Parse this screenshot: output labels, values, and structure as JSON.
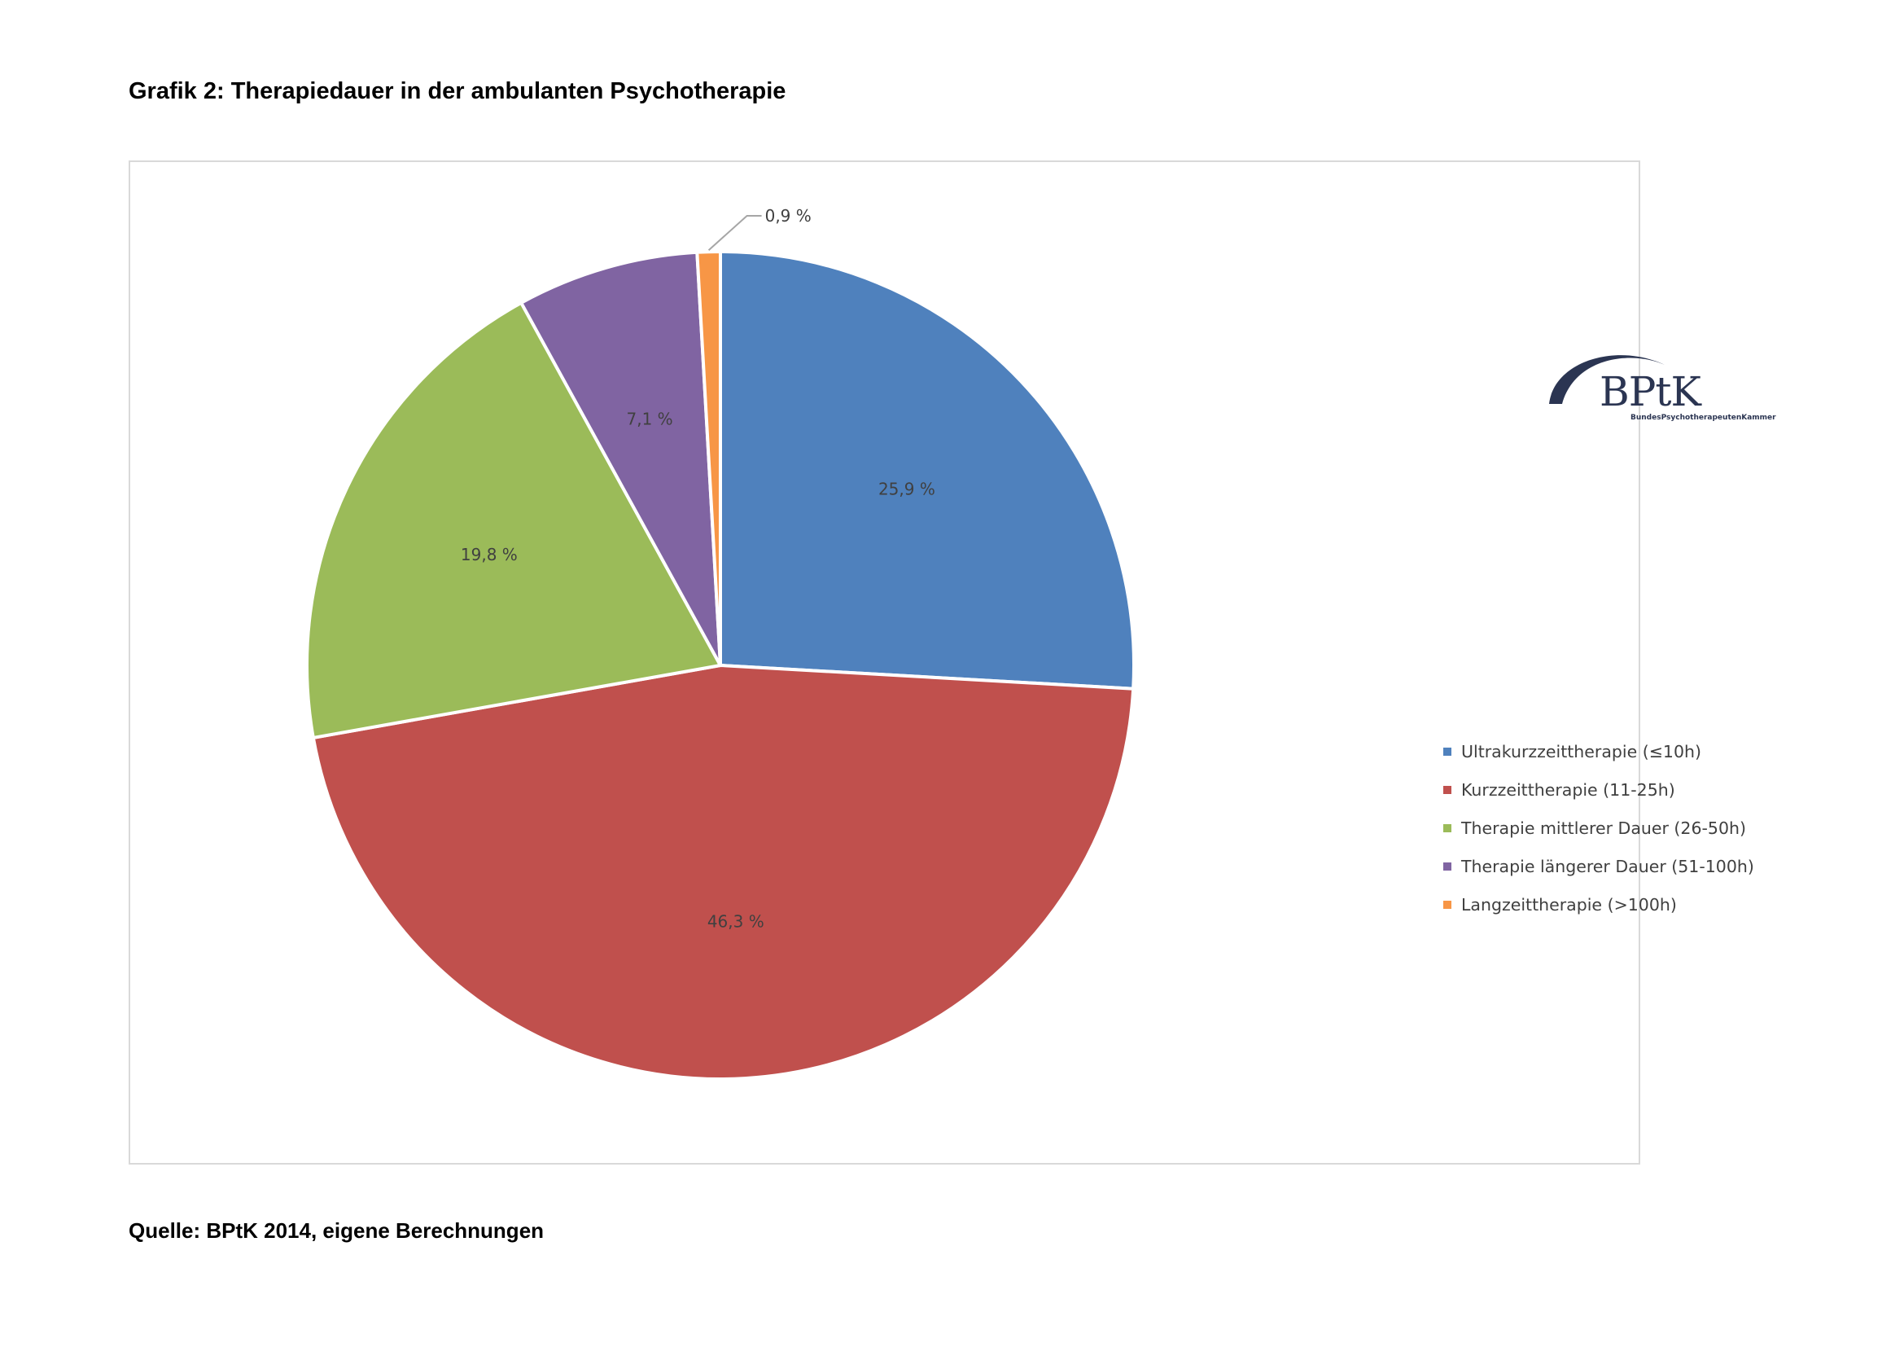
{
  "page": {
    "title": "Grafik 2: Therapiedauer in der ambulanten Psychotherapie",
    "source": "Quelle: BPtK 2014, eigene Berechnungen"
  },
  "logo": {
    "text": "BPtK",
    "subtitle": "BundesPsychotherapeutenKammer"
  },
  "chart_data": {
    "type": "pie",
    "title": "",
    "legend_position": "right",
    "categories": [
      "Ultrakurzzeittherapie (≤10h)",
      "Kurzzeittherapie (11-25h)",
      "Therapie mittlerer Dauer (26-50h)",
      "Therapie längerer Dauer (51-100h)",
      "Langzeittherapie (>100h)"
    ],
    "values": [
      25.9,
      46.3,
      19.8,
      7.1,
      0.9
    ],
    "data_labels": [
      "25,9 %",
      "46,3 %",
      "19,8 %",
      "7,1 %",
      "0,9 %"
    ],
    "colors": [
      "#4f81bd",
      "#c0504d",
      "#9bbb59",
      "#8064a2",
      "#f79646"
    ]
  }
}
